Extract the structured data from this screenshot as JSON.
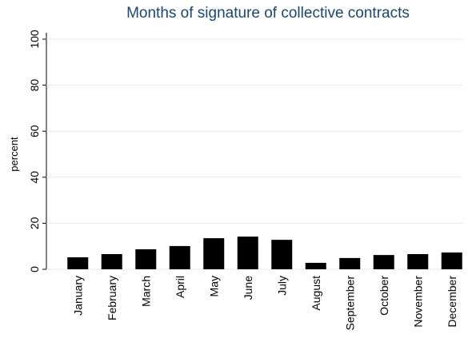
{
  "chart_data": {
    "type": "bar",
    "title": "Months of signature of collective contracts",
    "ylabel": "percent",
    "categories": [
      "January",
      "February",
      "March",
      "April",
      "May",
      "June",
      "July",
      "August",
      "September",
      "October",
      "November",
      "December"
    ],
    "values": [
      5.2,
      6.6,
      8.7,
      10.1,
      13.5,
      14.2,
      12.8,
      2.8,
      4.9,
      6.2,
      6.6,
      7.3
    ],
    "color": "#000000",
    "ylim": [
      0,
      100
    ],
    "yticks": [
      0,
      20,
      40,
      60,
      80,
      100
    ],
    "grid": true
  }
}
